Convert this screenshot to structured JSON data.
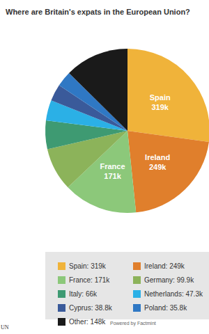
{
  "chart_data": {
    "type": "pie",
    "title": "Where are Britain's expats in the European Union?",
    "categories": [
      "Spain",
      "Ireland",
      "France",
      "Germany",
      "Italy",
      "Netherlands",
      "Cyprus",
      "Poland",
      "Other"
    ],
    "values": [
      319,
      249,
      171,
      99.9,
      66,
      47.3,
      38.8,
      35.8,
      148
    ],
    "value_labels": [
      "319k",
      "249k",
      "171k",
      null,
      null,
      null,
      null,
      null,
      null
    ],
    "legend_labels": [
      "Spain: 319k",
      "Ireland: 249k",
      "France: 171k",
      "Germany: 99.9k",
      "Italy: 66k",
      "Netherlands: 47.3k",
      "Cyprus: 38.8k",
      "Poland: 35.8k",
      "Other: 148k"
    ],
    "colors": [
      "#f0b33a",
      "#e07f2c",
      "#8cc87a",
      "#8cb35a",
      "#3e9a72",
      "#2bb0e6",
      "#3a5a9a",
      "#2f78c4",
      "#1a1a1a"
    ],
    "data_labels": true,
    "legend": "bottom",
    "credit": "Powered by Factmint",
    "source": "UN"
  }
}
